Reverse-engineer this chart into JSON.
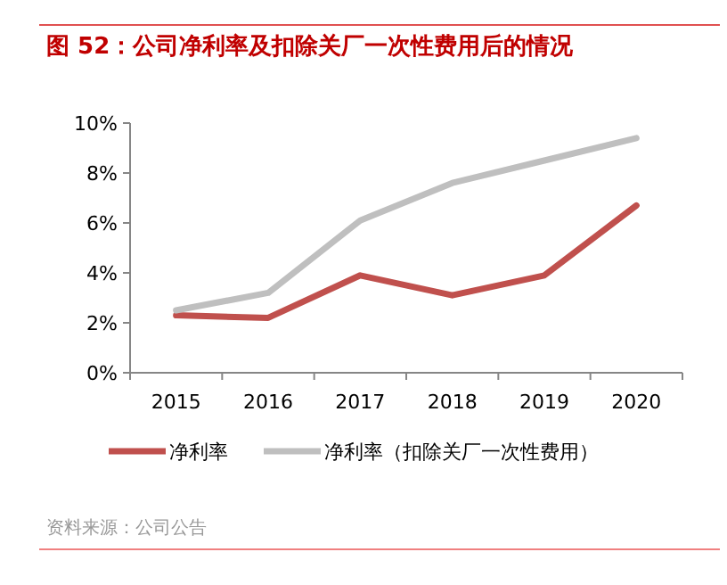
{
  "chart_data": {
    "type": "line",
    "title": "图 52：公司净利率及扣除关厂一次性费用后的情况",
    "categories": [
      "2015",
      "2016",
      "2017",
      "2018",
      "2019",
      "2020"
    ],
    "series": [
      {
        "name": "净利率",
        "color": "#c0504d",
        "values": [
          2.3,
          2.2,
          3.9,
          3.1,
          3.9,
          6.7
        ]
      },
      {
        "name": "净利率（扣除关厂一次性费用）",
        "color": "#bfbfbf",
        "values": [
          2.5,
          3.2,
          6.1,
          7.6,
          8.5,
          9.4
        ]
      }
    ],
    "ylim": [
      0,
      10
    ],
    "yticks": [
      {
        "value": 0,
        "label": "0%"
      },
      {
        "value": 2,
        "label": "2%"
      },
      {
        "value": 4,
        "label": "4%"
      },
      {
        "value": 6,
        "label": "6%"
      },
      {
        "value": 8,
        "label": "8%"
      },
      {
        "value": 10,
        "label": "10%"
      }
    ],
    "grid": false,
    "legend": "bottom",
    "marker": "none",
    "line_style": "solid",
    "annotations": [
      "资料来源：公司公告"
    ]
  }
}
